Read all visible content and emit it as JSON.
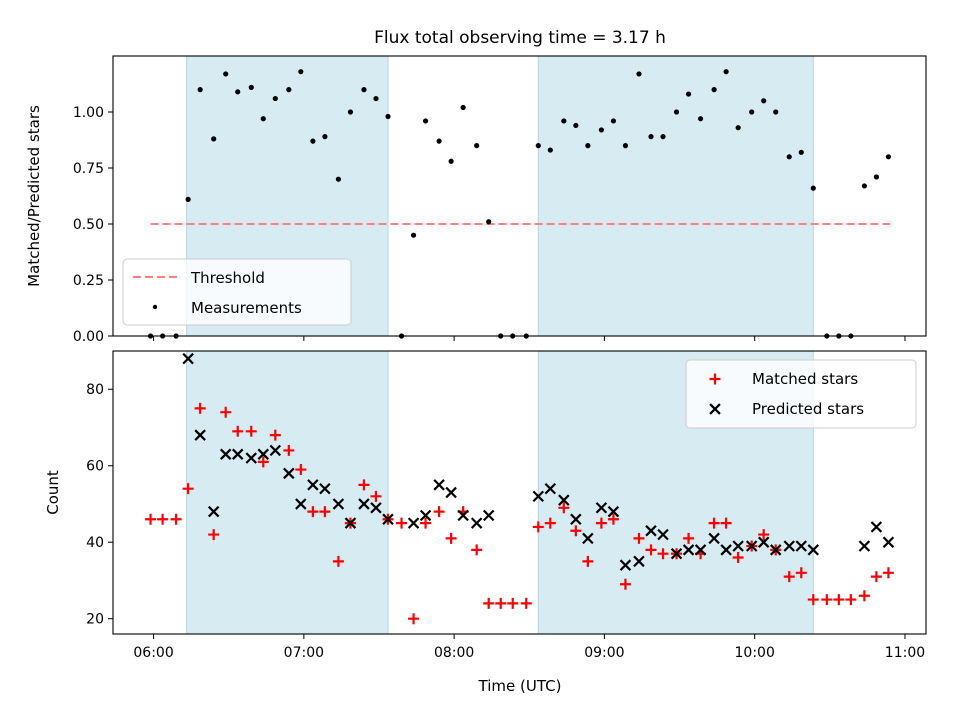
{
  "chart_data": {
    "type": "scatter",
    "title": "Flux total observing time = 3.17 h",
    "xlabel": "Time (UTC)",
    "x_ticks": [
      "06:00",
      "07:00",
      "08:00",
      "09:00",
      "10:00",
      "11:00"
    ],
    "x_range_hours": [
      5.73,
      11.14
    ],
    "shaded_intervals_hours": [
      [
        6.22,
        7.56
      ],
      [
        8.56,
        10.39
      ]
    ],
    "shade_color": "#add8e6",
    "panels": [
      {
        "ylabel": "Matched/Predicted stars",
        "ylim": [
          0,
          1.25
        ],
        "y_ticks": [
          "0.00",
          "0.25",
          "0.50",
          "0.75",
          "1.00"
        ],
        "legend_position": "lower-left",
        "threshold": {
          "name": "Threshold",
          "value": 0.5,
          "x_range_hours": [
            5.98,
            10.9
          ],
          "color": "#ff7f7f"
        },
        "measurements": {
          "name": "Measurements",
          "color": "#000000",
          "x": [
            5.98,
            6.06,
            6.15,
            6.23,
            6.31,
            6.4,
            6.48,
            6.56,
            6.65,
            6.73,
            6.81,
            6.9,
            6.98,
            7.06,
            7.14,
            7.23,
            7.31,
            7.4,
            7.48,
            7.56,
            7.65,
            7.73,
            7.81,
            7.9,
            7.98,
            8.06,
            8.15,
            8.23,
            8.31,
            8.39,
            8.48,
            8.56,
            8.64,
            8.73,
            8.81,
            8.89,
            8.98,
            9.06,
            9.14,
            9.23,
            9.31,
            9.39,
            9.48,
            9.56,
            9.64,
            9.73,
            9.81,
            9.89,
            9.98,
            10.06,
            10.14,
            10.23,
            10.31,
            10.39,
            10.48,
            10.56,
            10.64,
            10.73,
            10.81,
            10.89
          ],
          "y": [
            0,
            0,
            0,
            0.61,
            1.1,
            0.88,
            1.17,
            1.09,
            1.11,
            0.97,
            1.06,
            1.1,
            1.18,
            0.87,
            0.89,
            0.7,
            1.0,
            1.1,
            1.06,
            0.98,
            0,
            0.45,
            0.96,
            0.87,
            0.78,
            1.02,
            0.85,
            0.51,
            0,
            0,
            0,
            0.85,
            0.83,
            0.96,
            0.94,
            0.85,
            0.92,
            0.96,
            0.85,
            1.17,
            0.89,
            0.89,
            1.0,
            1.08,
            0.97,
            1.1,
            1.18,
            0.93,
            1.0,
            1.05,
            1.0,
            0.8,
            0.82,
            0.66,
            0,
            0,
            0,
            0.67,
            0.71,
            0.8
          ]
        }
      },
      {
        "ylabel": "Count",
        "ylim": [
          16,
          90
        ],
        "y_ticks": [
          "20",
          "40",
          "60",
          "80"
        ],
        "legend_position": "upper-right",
        "series": [
          {
            "name": "Matched stars",
            "marker": "+",
            "color": "#ff0000",
            "x": [
              5.98,
              6.06,
              6.15,
              6.23,
              6.31,
              6.4,
              6.48,
              6.56,
              6.65,
              6.73,
              6.81,
              6.9,
              6.98,
              7.06,
              7.14,
              7.23,
              7.31,
              7.4,
              7.48,
              7.56,
              7.65,
              7.73,
              7.81,
              7.9,
              7.98,
              8.06,
              8.15,
              8.23,
              8.31,
              8.39,
              8.48,
              8.56,
              8.64,
              8.73,
              8.81,
              8.89,
              8.98,
              9.06,
              9.14,
              9.23,
              9.31,
              9.39,
              9.48,
              9.56,
              9.64,
              9.73,
              9.81,
              9.89,
              9.98,
              10.06,
              10.14,
              10.23,
              10.31,
              10.39,
              10.48,
              10.56,
              10.64,
              10.73,
              10.81,
              10.89
            ],
            "y": [
              46,
              46,
              46,
              54,
              75,
              42,
              74,
              69,
              69,
              61,
              68,
              64,
              59,
              48,
              48,
              35,
              45,
              55,
              52,
              46,
              45,
              20,
              45,
              48,
              41,
              48,
              38,
              24,
              24,
              24,
              24,
              44,
              45,
              49,
              43,
              35,
              45,
              46,
              29,
              41,
              38,
              37,
              37,
              41,
              37,
              45,
              45,
              36,
              39,
              42,
              38,
              31,
              32,
              25,
              25,
              25,
              25,
              26,
              31,
              32
            ]
          },
          {
            "name": "Predicted stars",
            "marker": "x",
            "color": "#000000",
            "x": [
              6.23,
              6.31,
              6.4,
              6.48,
              6.56,
              6.65,
              6.73,
              6.81,
              6.9,
              6.98,
              7.06,
              7.14,
              7.23,
              7.31,
              7.4,
              7.48,
              7.56,
              7.73,
              7.81,
              7.9,
              7.98,
              8.06,
              8.15,
              8.23,
              8.56,
              8.64,
              8.73,
              8.81,
              8.89,
              8.98,
              9.06,
              9.14,
              9.23,
              9.31,
              9.39,
              9.48,
              9.56,
              9.64,
              9.73,
              9.81,
              9.89,
              9.98,
              10.06,
              10.14,
              10.23,
              10.31,
              10.39,
              10.73,
              10.81,
              10.89
            ],
            "y": [
              88,
              68,
              48,
              63,
              63,
              62,
              63,
              64,
              58,
              50,
              55,
              54,
              50,
              45,
              50,
              49,
              46,
              45,
              47,
              55,
              53,
              47,
              45,
              47,
              52,
              54,
              51,
              46,
              41,
              49,
              48,
              34,
              35,
              43,
              42,
              37,
              38,
              38,
              41,
              38,
              39,
              39,
              40,
              38,
              39,
              39,
              38,
              39,
              44,
              40
            ]
          }
        ]
      }
    ]
  }
}
